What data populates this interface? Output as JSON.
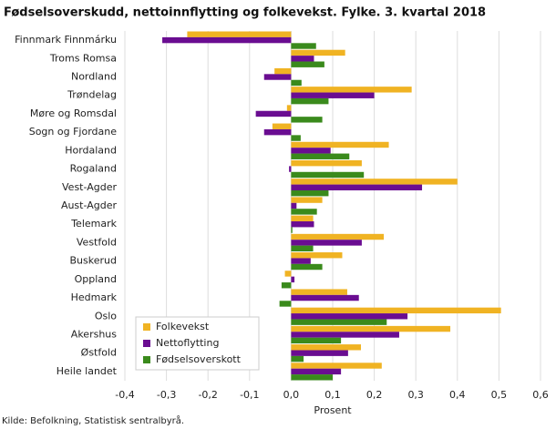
{
  "chart_data": {
    "type": "barh",
    "title": "Fødselsoverskudd, nettoinnflytting og folkevekst. Fylke. 3. kvartal 2018",
    "xlabel": "Prosent",
    "source": "Kilde: Befolkning, Statistisk sentralbyrå.",
    "categories": [
      "Finnmark Finnmárku",
      "Troms Romsa",
      "Nordland",
      "Trøndelag",
      "Møre og Romsdal",
      "Sogn og Fjordane",
      "Hordaland",
      "Rogaland",
      "Vest-Agder",
      "Aust-Agder",
      "Telemark",
      "Vestfold",
      "Buskerud",
      "Oppland",
      "Hedmark",
      "Oslo",
      "Akershus",
      "Østfold",
      "Heile landet"
    ],
    "series": [
      {
        "name": "Folkevekst",
        "color": "#f0b323",
        "values": [
          -0.25,
          0.13,
          -0.04,
          0.29,
          -0.01,
          -0.045,
          0.235,
          0.17,
          0.4,
          0.075,
          0.053,
          0.223,
          0.123,
          -0.015,
          0.135,
          0.505,
          0.383,
          0.168,
          0.218
        ]
      },
      {
        "name": "Nettoflytting",
        "color": "#6a0d91",
        "values": [
          -0.31,
          0.055,
          -0.065,
          0.2,
          -0.085,
          -0.065,
          0.095,
          -0.005,
          0.315,
          0.013,
          0.055,
          0.17,
          0.047,
          0.008,
          0.163,
          0.28,
          0.26,
          0.137,
          0.12
        ]
      },
      {
        "name": "Fødselsoverskott",
        "color": "#3a8a1c",
        "values": [
          0.06,
          0.08,
          0.025,
          0.09,
          0.075,
          0.023,
          0.14,
          0.175,
          0.09,
          0.062,
          0.003,
          0.053,
          0.075,
          -0.023,
          -0.028,
          0.23,
          0.12,
          0.03,
          0.1
        ]
      }
    ],
    "xlim": [
      -0.4,
      0.6
    ],
    "xticks": [
      {
        "value": -0.4,
        "label": "-0,4"
      },
      {
        "value": -0.3,
        "label": "-0,3"
      },
      {
        "value": -0.2,
        "label": "-0,2"
      },
      {
        "value": -0.1,
        "label": "-0,1"
      },
      {
        "value": 0,
        "label": "0,0"
      },
      {
        "value": 0.1,
        "label": "0,1"
      },
      {
        "value": 0.2,
        "label": "0,2"
      },
      {
        "value": 0.3,
        "label": "0,3"
      },
      {
        "value": 0.4,
        "label": "0,4"
      },
      {
        "value": 0.5,
        "label": "0,5"
      },
      {
        "value": 0.6,
        "label": "0,6"
      }
    ],
    "grid": true,
    "legend_position": "lower left"
  }
}
